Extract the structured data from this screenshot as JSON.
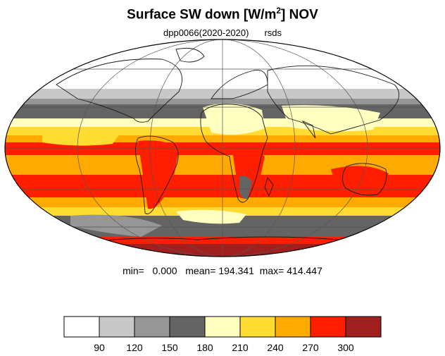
{
  "title": {
    "main": "Surface SW down [W/m",
    "sup": "2",
    "rest": "]  NOV"
  },
  "subtitle": {
    "experiment": "dpp0066(2020-2020)",
    "variable": "rsds"
  },
  "stats": {
    "min_label": "min=",
    "min": "0.000",
    "mean_label": "mean=",
    "mean": "194.341",
    "max_label": "max=",
    "max": "414.447"
  },
  "colorbar": {
    "ticks": [
      "90",
      "120",
      "150",
      "180",
      "210",
      "240",
      "270",
      "300"
    ],
    "colors": [
      "#ffffff",
      "#c8c8c8",
      "#969696",
      "#646464",
      "#ffffc0",
      "#ffdc32",
      "#ffaa00",
      "#ff1e00",
      "#a02020"
    ]
  },
  "map": {
    "projection": "Mollweide",
    "ocean_color": "#ffaa00"
  }
}
